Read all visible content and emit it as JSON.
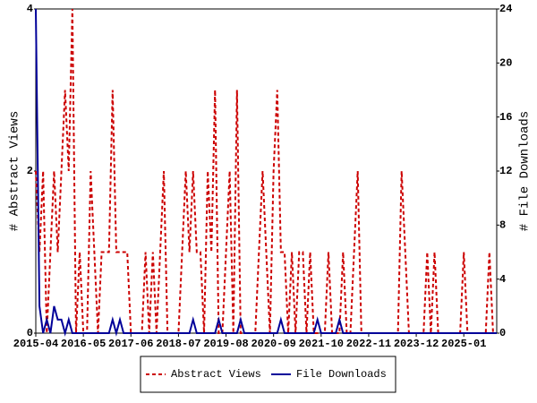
{
  "chart_data": {
    "type": "line",
    "categories": [
      "2015-04",
      null,
      null,
      null,
      null,
      null,
      null,
      null,
      null,
      null,
      null,
      null,
      null,
      "2016-05",
      null,
      null,
      null,
      null,
      null,
      null,
      null,
      null,
      null,
      null,
      null,
      null,
      "2017-06",
      null,
      null,
      null,
      null,
      null,
      null,
      null,
      null,
      null,
      null,
      null,
      null,
      "2018-07",
      null,
      null,
      null,
      null,
      null,
      null,
      null,
      null,
      null,
      null,
      null,
      null,
      "2019-08",
      null,
      null,
      null,
      null,
      null,
      null,
      null,
      null,
      null,
      null,
      null,
      null,
      "2020-09",
      null,
      null,
      null,
      null,
      null,
      null,
      null,
      null,
      null,
      null,
      null,
      null,
      "2021-10",
      null,
      null,
      null,
      null,
      null,
      null,
      null,
      null,
      null,
      null,
      null,
      null,
      "2022-11",
      null,
      null,
      null,
      null,
      null,
      null,
      null,
      null,
      null,
      null,
      null,
      null,
      "2023-12",
      null,
      null,
      null,
      null,
      null,
      null,
      null,
      null,
      null,
      null,
      null,
      null,
      "2025-01",
      null,
      null,
      null,
      null,
      null,
      null,
      null,
      null,
      null
    ],
    "series": [
      {
        "name": "Abstract Views",
        "color": "#cc0000",
        "axis": "y",
        "values": [
          2,
          1,
          2,
          0,
          1,
          2,
          1,
          2,
          3,
          2,
          4,
          0,
          1,
          0,
          0,
          2,
          1,
          0,
          1,
          1,
          1,
          3,
          1,
          1,
          1,
          1,
          0,
          0,
          0,
          0,
          1,
          0,
          1,
          0,
          1,
          2,
          0,
          0,
          0,
          0,
          1,
          2,
          1,
          2,
          1,
          1,
          0,
          2,
          1,
          3,
          0,
          0,
          1,
          2,
          0,
          3,
          0,
          0,
          0,
          0,
          0,
          1,
          2,
          1,
          0,
          2,
          3,
          1,
          1,
          0,
          1,
          0,
          1,
          1,
          0,
          1,
          0,
          0,
          0,
          0,
          1,
          0,
          0,
          0,
          1,
          0,
          0,
          1,
          2,
          0,
          0,
          0,
          0,
          0,
          0,
          0,
          0,
          0,
          0,
          0,
          2,
          1,
          0,
          0,
          0,
          0,
          0,
          1,
          0,
          1,
          0,
          0,
          0,
          0,
          0,
          0,
          0,
          1,
          0,
          0,
          0,
          0,
          0,
          0,
          1,
          0,
          0
        ]
      },
      {
        "name": "File Downloads",
        "color": "#000099",
        "axis": "y2",
        "values": [
          24,
          2,
          0,
          1,
          0,
          2,
          1,
          1,
          0,
          1,
          0,
          0,
          0,
          0,
          0,
          0,
          0,
          0,
          0,
          0,
          0,
          1,
          0,
          1,
          0,
          0,
          0,
          0,
          0,
          0,
          0,
          0,
          0,
          0,
          0,
          0,
          0,
          0,
          0,
          0,
          0,
          0,
          0,
          1,
          0,
          0,
          0,
          0,
          0,
          0,
          1,
          0,
          0,
          0,
          0,
          0,
          1,
          0,
          0,
          0,
          0,
          0,
          0,
          0,
          0,
          0,
          0,
          1,
          0,
          0,
          0,
          0,
          0,
          0,
          0,
          0,
          0,
          1,
          0,
          0,
          0,
          0,
          0,
          1,
          0,
          0,
          0,
          0,
          0,
          0,
          0,
          0,
          0,
          0,
          0,
          0,
          0,
          0,
          0,
          0,
          0,
          0,
          0,
          0,
          0,
          0,
          0,
          0,
          0,
          0,
          0,
          0,
          0,
          0,
          0,
          0,
          0,
          0,
          0,
          0,
          0,
          0,
          0,
          0,
          0,
          0,
          0
        ]
      }
    ],
    "y_label": "# Abstract Views",
    "y2_label": "# File Downloads",
    "ylim": [
      0,
      4
    ],
    "yticks": [
      0,
      2,
      4
    ],
    "y2lim": [
      0,
      24
    ],
    "y2ticks": [
      0,
      4,
      8,
      12,
      16,
      20,
      24
    ],
    "grid": false,
    "legend": "bottom"
  }
}
